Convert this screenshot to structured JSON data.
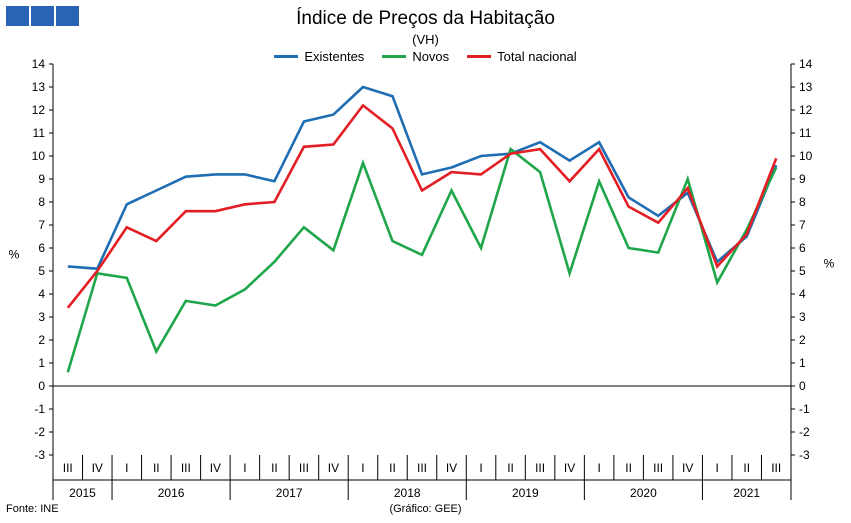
{
  "chart_data": {
    "type": "line",
    "title": "Índice de Preços da Habitação",
    "subtitle": "(VH)",
    "ylabel": "%",
    "ylim": [
      -3,
      14
    ],
    "yticks": [
      "14",
      "13",
      "12",
      "11",
      "10",
      "9",
      "8",
      "7",
      "6",
      "5",
      "4",
      "3",
      "2",
      "1",
      "0",
      "-1",
      "-2",
      "-3"
    ],
    "quarters": [
      "III",
      "IV",
      "I",
      "II",
      "III",
      "IV",
      "I",
      "II",
      "III",
      "IV",
      "I",
      "II",
      "III",
      "IV",
      "I",
      "II",
      "III",
      "IV",
      "I",
      "II",
      "III",
      "IV",
      "I",
      "II",
      "III"
    ],
    "years": [
      {
        "label": "2015",
        "count": 2
      },
      {
        "label": "2016",
        "count": 4
      },
      {
        "label": "2017",
        "count": 4
      },
      {
        "label": "2018",
        "count": 4
      },
      {
        "label": "2019",
        "count": 4
      },
      {
        "label": "2020",
        "count": 4
      },
      {
        "label": "2021",
        "count": 3
      }
    ],
    "series": [
      {
        "name": "Existentes",
        "color": "#1f6db3",
        "values": [
          5.2,
          5.1,
          7.9,
          8.5,
          9.1,
          9.2,
          9.2,
          8.9,
          11.5,
          11.8,
          13.0,
          12.6,
          9.2,
          9.5,
          10.0,
          10.1,
          10.6,
          9.8,
          10.6,
          8.2,
          7.4,
          8.4,
          5.4,
          6.5,
          9.6
        ]
      },
      {
        "name": "Novos",
        "color": "#1fa64a",
        "values": [
          0.6,
          4.9,
          4.7,
          1.5,
          3.7,
          3.5,
          4.2,
          5.4,
          6.9,
          5.9,
          9.7,
          6.3,
          5.7,
          8.5,
          6.0,
          10.3,
          9.3,
          4.9,
          8.9,
          6.0,
          5.8,
          9.0,
          4.5,
          6.8,
          9.5
        ]
      },
      {
        "name": "Total nacional",
        "color": "#e31e24",
        "values": [
          3.4,
          5.0,
          6.9,
          6.3,
          7.6,
          7.6,
          7.9,
          8.0,
          10.4,
          10.5,
          12.2,
          11.2,
          8.5,
          9.3,
          9.2,
          10.1,
          10.3,
          8.9,
          10.3,
          7.8,
          7.1,
          8.6,
          5.2,
          6.6,
          9.9
        ]
      }
    ],
    "legend_position": "top-center",
    "grid": false
  },
  "footer": {
    "source": "Fonte: INE",
    "credit": "(Gráfico: GEE)"
  },
  "logo": {
    "icon": "gee-logo-icon",
    "color": "#2a62b4"
  }
}
